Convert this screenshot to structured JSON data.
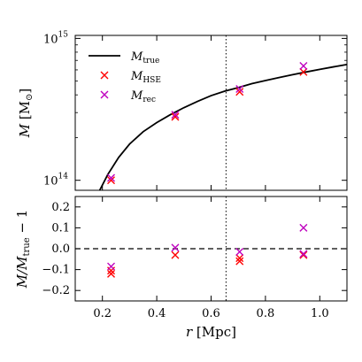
{
  "chart_data": [
    {
      "panel": "top",
      "type": "line",
      "xlabel": "",
      "ylabel_main": "M",
      "ylabel_unit": "[M",
      "ylabel_unit_sub": "⊙",
      "ylabel_unit_close": "]",
      "yscale": "log",
      "xlim": [
        0.1,
        1.1
      ],
      "ylim": [
        85000000000000.0,
        1050000000000000.0
      ],
      "yticks": [
        {
          "value": 100000000000000.0,
          "base": "10",
          "exp": "14"
        },
        {
          "value": 1000000000000000.0,
          "base": "10",
          "exp": "15"
        }
      ],
      "vline_x": 0.655,
      "legend": {
        "placement": "top-left",
        "entries": [
          {
            "main": "M",
            "sub": "true",
            "marker": "line",
            "color": "#000000"
          },
          {
            "main": "M",
            "sub": "HSE",
            "marker": "x",
            "color": "#ff0000"
          },
          {
            "main": "M",
            "sub": "rec",
            "marker": "x",
            "color": "#bf00bf"
          }
        ]
      },
      "series": [
        {
          "name": "M_true",
          "kind": "line",
          "color": "#000000",
          "x": [
            0.19,
            0.22,
            0.26,
            0.3,
            0.35,
            0.4,
            0.45,
            0.5,
            0.55,
            0.6,
            0.65,
            0.7,
            0.75,
            0.8,
            0.85,
            0.9,
            0.95,
            1.0,
            1.05,
            1.1
          ],
          "y": [
            85000000000000.0,
            110000000000000.0,
            145000000000000.0,
            180000000000000.0,
            220000000000000.0,
            255000000000000.0,
            290000000000000.0,
            325000000000000.0,
            360000000000000.0,
            395000000000000.0,
            425000000000000.0,
            450000000000000.0,
            480000000000000.0,
            505000000000000.0,
            530000000000000.0,
            555000000000000.0,
            580000000000000.0,
            605000000000000.0,
            630000000000000.0,
            655000000000000.0
          ]
        },
        {
          "name": "M_HSE",
          "kind": "x",
          "color": "#ff0000",
          "x": [
            0.232,
            0.468,
            0.705,
            0.94
          ],
          "y": [
            100000000000000.0,
            280000000000000.0,
            420000000000000.0,
            580000000000000.0
          ]
        },
        {
          "name": "M_rec",
          "kind": "x",
          "color": "#bf00bf",
          "x": [
            0.232,
            0.468,
            0.705,
            0.94
          ],
          "y": [
            104000000000000.0,
            290000000000000.0,
            440000000000000.0,
            640000000000000.0
          ]
        }
      ]
    },
    {
      "panel": "bottom",
      "type": "scatter",
      "xlabel_main": "r",
      "xlabel_unit": "[Mpc]",
      "ylabel_main": "M/M",
      "ylabel_sub": "true",
      "ylabel_tail": "− 1",
      "xlim": [
        0.1,
        1.1
      ],
      "ylim": [
        -0.25,
        0.25
      ],
      "xticks": [
        "0.2",
        "0.4",
        "0.6",
        "0.8",
        "1.0"
      ],
      "xtick_values": [
        0.2,
        0.4,
        0.6,
        0.8,
        1.0
      ],
      "yticks": [
        "−0.2",
        "−0.1",
        "0.0",
        "0.1",
        "0.2"
      ],
      "ytick_values": [
        -0.2,
        -0.1,
        0.0,
        0.1,
        0.2
      ],
      "hline_y": 0.0,
      "vline_x": 0.655,
      "series": [
        {
          "name": "M_HSE",
          "kind": "x",
          "color": "#ff0000",
          "x": [
            0.232,
            0.232,
            0.468,
            0.705,
            0.705,
            0.94
          ],
          "y": [
            -0.105,
            -0.12,
            -0.03,
            -0.045,
            -0.06,
            -0.03
          ]
        },
        {
          "name": "M_rec",
          "kind": "x",
          "color": "#bf00bf",
          "x": [
            0.232,
            0.468,
            0.705,
            0.94,
            0.94
          ],
          "y": [
            -0.085,
            0.005,
            -0.015,
            0.1,
            -0.025
          ]
        }
      ]
    }
  ]
}
